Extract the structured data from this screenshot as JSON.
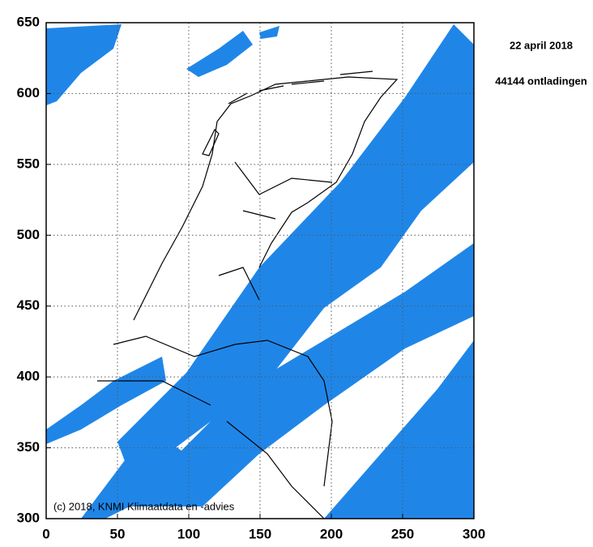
{
  "map": {
    "title": "22 april 2018",
    "subtitle": "44144 ontladingen",
    "credit": "(c) 2018, KNMI Klimaatdata en -advies",
    "xlim": [
      0,
      300
    ],
    "xticks": [
      0,
      50,
      100,
      150,
      200,
      250,
      300
    ],
    "ylim": [
      300,
      650
    ],
    "yticks": [
      300,
      350,
      400,
      450,
      500,
      550,
      600,
      650
    ],
    "grid": true
  }
}
